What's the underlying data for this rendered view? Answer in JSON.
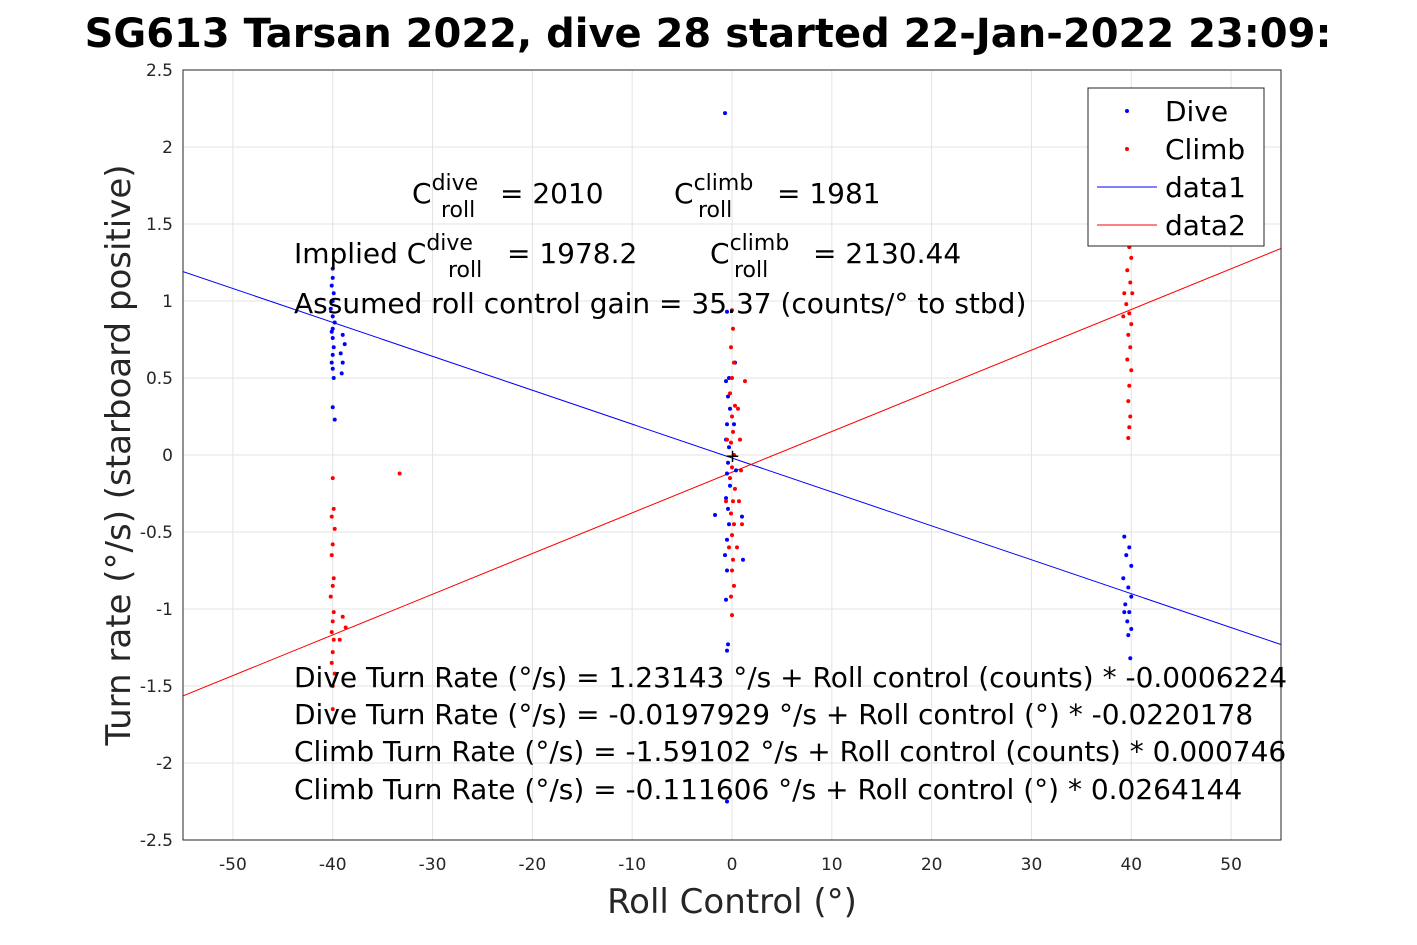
{
  "chart_data": {
    "type": "scatter",
    "title": "SG613 Tarsan 2022, dive 28 started 22-Jan-2022 23:09:",
    "xlabel": "Roll Control (°)",
    "ylabel": "Turn rate (°/s) (starboard positive)",
    "xlim": [
      -55,
      55
    ],
    "ylim": [
      -2.5,
      2.5
    ],
    "grid": true,
    "xticks": [
      -50,
      -40,
      -30,
      -20,
      -10,
      0,
      10,
      20,
      30,
      40,
      50
    ],
    "yticks": [
      -2.5,
      -2,
      -1.5,
      -1,
      -0.5,
      0,
      0.5,
      1,
      1.5,
      2,
      2.5
    ],
    "legend": {
      "placement": "top-right",
      "entries": [
        "Dive",
        "Climb",
        "data1",
        "data2"
      ]
    },
    "colors": {
      "dive": "#0000ff",
      "climb": "#ff0000"
    },
    "series": [
      {
        "name": "Dive",
        "kind": "points",
        "points": [
          [
            -40,
            1.21
          ],
          [
            -40,
            1.15
          ],
          [
            -40.1,
            1.1
          ],
          [
            -39.9,
            1.05
          ],
          [
            -40,
            1.0
          ],
          [
            -40.2,
            0.95
          ],
          [
            -40,
            0.9
          ],
          [
            -39.8,
            0.86
          ],
          [
            -40,
            0.82
          ],
          [
            -40.1,
            0.8
          ],
          [
            -40,
            0.76
          ],
          [
            -39.9,
            0.7
          ],
          [
            -40,
            0.65
          ],
          [
            -40.1,
            0.6
          ],
          [
            -40,
            0.56
          ],
          [
            -39.9,
            0.5
          ],
          [
            -40,
            0.31
          ],
          [
            -39.8,
            0.23
          ],
          [
            -39,
            0.78
          ],
          [
            -38.8,
            0.72
          ],
          [
            -39.2,
            0.66
          ],
          [
            -39,
            0.6
          ],
          [
            -39.1,
            0.53
          ],
          [
            -0.7,
            2.22
          ],
          [
            -0.5,
            0.93
          ],
          [
            -0.3,
            0.5
          ],
          [
            -0.6,
            0.48
          ],
          [
            -0.4,
            0.38
          ],
          [
            -0.2,
            0.3
          ],
          [
            -0.5,
            0.2
          ],
          [
            -0.6,
            0.1
          ],
          [
            -0.3,
            0.05
          ],
          [
            -0.4,
            -0.05
          ],
          [
            -0.5,
            -0.12
          ],
          [
            -0.2,
            -0.2
          ],
          [
            -0.6,
            -0.28
          ],
          [
            -0.4,
            -0.35
          ],
          [
            -1.7,
            -0.39
          ],
          [
            -0.3,
            -0.45
          ],
          [
            -0.5,
            -0.55
          ],
          [
            -0.7,
            -0.65
          ],
          [
            -0.5,
            -0.75
          ],
          [
            -0.6,
            -0.94
          ],
          [
            -0.4,
            -1.23
          ],
          [
            -0.5,
            -1.27
          ],
          [
            -0.5,
            -2.25
          ],
          [
            0.3,
            0.6
          ],
          [
            0.2,
            0.2
          ],
          [
            0.4,
            -0.1
          ],
          [
            1.0,
            -0.4
          ],
          [
            1.1,
            -0.68
          ],
          [
            39.3,
            -0.53
          ],
          [
            39.8,
            -0.6
          ],
          [
            39.5,
            -0.65
          ],
          [
            40,
            -0.72
          ],
          [
            39.2,
            -0.8
          ],
          [
            39.7,
            -0.86
          ],
          [
            40,
            -0.92
          ],
          [
            39.4,
            -0.97
          ],
          [
            39.8,
            -1.02
          ],
          [
            39.6,
            -1.08
          ],
          [
            40,
            -1.13
          ],
          [
            39.7,
            -1.17
          ],
          [
            39.9,
            -1.32
          ],
          [
            39.3,
            -1.02
          ]
        ]
      },
      {
        "name": "Climb",
        "kind": "points",
        "points": [
          [
            -40,
            -0.15
          ],
          [
            -39.9,
            -0.35
          ],
          [
            -40.1,
            -0.4
          ],
          [
            -39.8,
            -0.48
          ],
          [
            -40,
            -0.58
          ],
          [
            -40.1,
            -0.65
          ],
          [
            -39.9,
            -0.8
          ],
          [
            -40,
            -0.85
          ],
          [
            -40.2,
            -0.92
          ],
          [
            -39.9,
            -1.02
          ],
          [
            -40,
            -1.08
          ],
          [
            -40.1,
            -1.15
          ],
          [
            -39.9,
            -1.2
          ],
          [
            -40,
            -1.28
          ],
          [
            -40.1,
            -1.35
          ],
          [
            -39.8,
            -1.42
          ],
          [
            -40,
            -1.5
          ],
          [
            -40,
            -1.65
          ],
          [
            -39,
            -1.05
          ],
          [
            -38.7,
            -1.12
          ],
          [
            -39.3,
            -1.2
          ],
          [
            -33.3,
            -0.12
          ],
          [
            0,
            0.94
          ],
          [
            0.1,
            0.82
          ],
          [
            -0.1,
            0.7
          ],
          [
            0.2,
            0.6
          ],
          [
            0,
            0.5
          ],
          [
            -0.2,
            0.4
          ],
          [
            0.3,
            0.32
          ],
          [
            0,
            0.25
          ],
          [
            0.1,
            0.15
          ],
          [
            -0.1,
            0.08
          ],
          [
            0.2,
            0
          ],
          [
            0,
            -0.08
          ],
          [
            -0.2,
            -0.15
          ],
          [
            0.3,
            -0.22
          ],
          [
            0.1,
            -0.3
          ],
          [
            -0.1,
            -0.38
          ],
          [
            0.2,
            -0.45
          ],
          [
            0,
            -0.52
          ],
          [
            -0.3,
            -0.6
          ],
          [
            0.1,
            -0.68
          ],
          [
            0,
            -0.75
          ],
          [
            0.2,
            -0.85
          ],
          [
            -0.1,
            -0.92
          ],
          [
            0,
            -1.04
          ],
          [
            1.3,
            0.48
          ],
          [
            0.8,
            0.1
          ],
          [
            0.9,
            -0.1
          ],
          [
            0.7,
            -0.3
          ],
          [
            1.0,
            -0.45
          ],
          [
            0.6,
            0.3
          ],
          [
            -0.6,
            -0.3
          ],
          [
            -0.5,
            0.1
          ],
          [
            0.5,
            -0.6
          ],
          [
            39.8,
            1.35
          ],
          [
            40,
            1.28
          ],
          [
            39.6,
            1.2
          ],
          [
            39.9,
            1.12
          ],
          [
            40.1,
            1.05
          ],
          [
            39.5,
            0.98
          ],
          [
            39.8,
            0.92
          ],
          [
            40,
            0.85
          ],
          [
            39.7,
            0.78
          ],
          [
            39.9,
            0.7
          ],
          [
            39.6,
            0.62
          ],
          [
            40,
            0.55
          ],
          [
            39.8,
            0.45
          ],
          [
            39.7,
            0.35
          ],
          [
            39.9,
            0.25
          ],
          [
            39.8,
            0.18
          ],
          [
            39.7,
            0.11
          ],
          [
            39.2,
            0.9
          ],
          [
            39.3,
            1.05
          ]
        ]
      },
      {
        "name": "data1",
        "kind": "line",
        "intercept": -0.0197929,
        "slope": -0.0220178
      },
      {
        "name": "data2",
        "kind": "line",
        "intercept": -0.111606,
        "slope": 0.0264144
      }
    ],
    "annotations": {
      "c_roll_dive": "= 2010",
      "c_roll_climb": "= 1981",
      "implied_prefix": "Implied C",
      "implied_dive": "= 1978.2",
      "implied_climb": "= 2130.44",
      "c_letter": "C",
      "sup_dive": "dive",
      "sup_climb": "climb",
      "sub_roll": "roll",
      "gain": "Assumed roll control gain = 35.37 (counts/° to stbd)",
      "equations": [
        "Dive Turn Rate (°/s) = 1.23143 °/s + Roll control (counts) * -0.0006224",
        "Dive Turn Rate (°/s) = -0.0197929 °/s + Roll control (°) * -0.0220178",
        "Climb Turn Rate (°/s) = -1.59102 °/s + Roll control (counts) * 0.000746",
        "Climb Turn Rate (°/s) = -0.111606 °/s + Roll control (°) * 0.0264144"
      ]
    }
  }
}
